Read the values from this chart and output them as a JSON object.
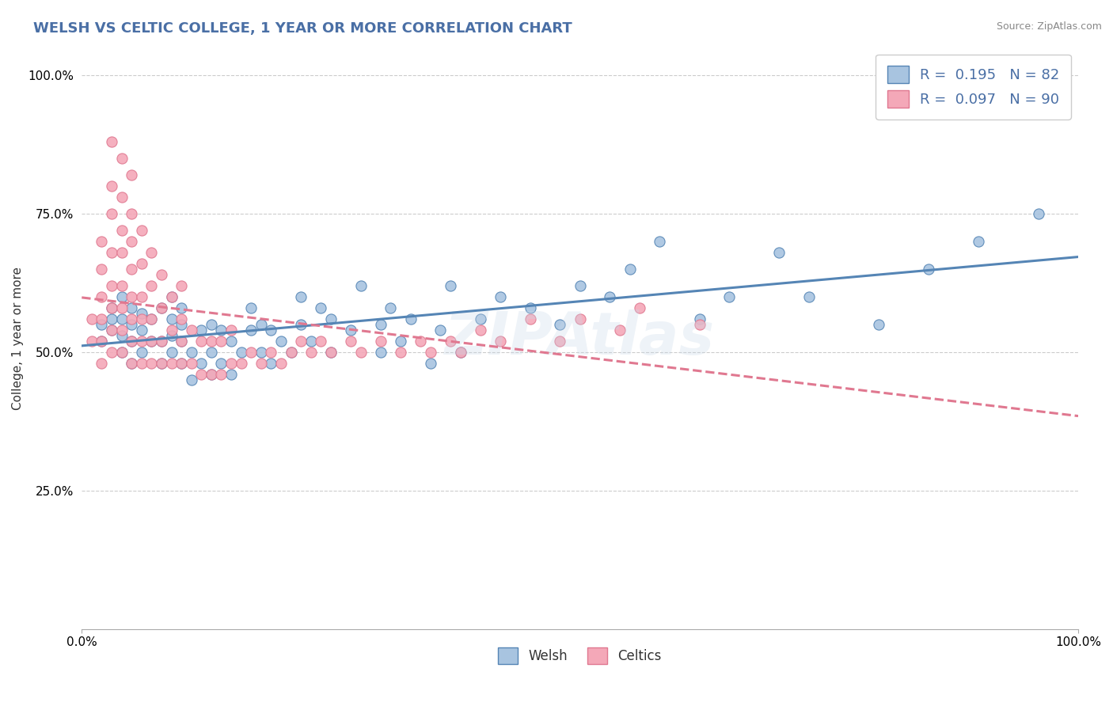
{
  "title": "WELSH VS CELTIC COLLEGE, 1 YEAR OR MORE CORRELATION CHART",
  "source": "Source: ZipAtlas.com",
  "xlabel": "",
  "ylabel": "College, 1 year or more",
  "xlim": [
    0.0,
    1.0
  ],
  "ylim": [
    0.0,
    1.05
  ],
  "xtick_labels": [
    "0.0%",
    "100.0%"
  ],
  "ytick_labels": [
    "25.0%",
    "50.0%",
    "75.0%",
    "100.0%"
  ],
  "legend_labels": [
    "Welsh",
    "Celtics"
  ],
  "welsh_R": 0.195,
  "welsh_N": 82,
  "celtics_R": 0.097,
  "celtics_N": 90,
  "welsh_color": "#a8c4e0",
  "celtics_color": "#f4a8b8",
  "welsh_line_color": "#5585b5",
  "celtics_line_color": "#e07890",
  "title_color": "#4a6fa5",
  "title_fontsize": 14,
  "watermark": "ZIPAtlas",
  "welsh_x": [
    0.02,
    0.02,
    0.03,
    0.03,
    0.03,
    0.04,
    0.04,
    0.04,
    0.04,
    0.05,
    0.05,
    0.05,
    0.05,
    0.06,
    0.06,
    0.06,
    0.07,
    0.07,
    0.08,
    0.08,
    0.08,
    0.09,
    0.09,
    0.09,
    0.09,
    0.1,
    0.1,
    0.1,
    0.1,
    0.11,
    0.11,
    0.12,
    0.12,
    0.13,
    0.13,
    0.13,
    0.14,
    0.14,
    0.15,
    0.15,
    0.16,
    0.17,
    0.17,
    0.18,
    0.18,
    0.19,
    0.19,
    0.2,
    0.21,
    0.22,
    0.22,
    0.23,
    0.24,
    0.25,
    0.25,
    0.27,
    0.28,
    0.3,
    0.3,
    0.31,
    0.32,
    0.33,
    0.35,
    0.36,
    0.37,
    0.38,
    0.4,
    0.42,
    0.45,
    0.48,
    0.5,
    0.53,
    0.55,
    0.58,
    0.62,
    0.65,
    0.7,
    0.73,
    0.8,
    0.85,
    0.9,
    0.96
  ],
  "welsh_y": [
    0.52,
    0.55,
    0.54,
    0.56,
    0.58,
    0.5,
    0.53,
    0.56,
    0.6,
    0.48,
    0.52,
    0.55,
    0.58,
    0.5,
    0.54,
    0.57,
    0.52,
    0.56,
    0.48,
    0.52,
    0.58,
    0.5,
    0.53,
    0.56,
    0.6,
    0.48,
    0.52,
    0.55,
    0.58,
    0.45,
    0.5,
    0.48,
    0.54,
    0.46,
    0.5,
    0.55,
    0.48,
    0.54,
    0.46,
    0.52,
    0.5,
    0.54,
    0.58,
    0.5,
    0.55,
    0.48,
    0.54,
    0.52,
    0.5,
    0.55,
    0.6,
    0.52,
    0.58,
    0.5,
    0.56,
    0.54,
    0.62,
    0.5,
    0.55,
    0.58,
    0.52,
    0.56,
    0.48,
    0.54,
    0.62,
    0.5,
    0.56,
    0.6,
    0.58,
    0.55,
    0.62,
    0.6,
    0.65,
    0.7,
    0.56,
    0.6,
    0.68,
    0.6,
    0.55,
    0.65,
    0.7,
    0.75
  ],
  "celtics_x": [
    0.01,
    0.01,
    0.02,
    0.02,
    0.02,
    0.02,
    0.02,
    0.02,
    0.03,
    0.03,
    0.03,
    0.03,
    0.03,
    0.03,
    0.03,
    0.03,
    0.04,
    0.04,
    0.04,
    0.04,
    0.04,
    0.04,
    0.04,
    0.04,
    0.05,
    0.05,
    0.05,
    0.05,
    0.05,
    0.05,
    0.05,
    0.05,
    0.06,
    0.06,
    0.06,
    0.06,
    0.06,
    0.06,
    0.07,
    0.07,
    0.07,
    0.07,
    0.07,
    0.08,
    0.08,
    0.08,
    0.08,
    0.09,
    0.09,
    0.09,
    0.1,
    0.1,
    0.1,
    0.1,
    0.11,
    0.11,
    0.12,
    0.12,
    0.13,
    0.13,
    0.14,
    0.14,
    0.15,
    0.15,
    0.16,
    0.17,
    0.18,
    0.19,
    0.2,
    0.21,
    0.22,
    0.23,
    0.24,
    0.25,
    0.27,
    0.28,
    0.3,
    0.32,
    0.34,
    0.35,
    0.37,
    0.38,
    0.4,
    0.42,
    0.45,
    0.48,
    0.5,
    0.54,
    0.56,
    0.62
  ],
  "celtics_y": [
    0.52,
    0.56,
    0.48,
    0.52,
    0.56,
    0.6,
    0.65,
    0.7,
    0.5,
    0.54,
    0.58,
    0.62,
    0.68,
    0.75,
    0.8,
    0.88,
    0.5,
    0.54,
    0.58,
    0.62,
    0.68,
    0.72,
    0.78,
    0.85,
    0.48,
    0.52,
    0.56,
    0.6,
    0.65,
    0.7,
    0.75,
    0.82,
    0.48,
    0.52,
    0.56,
    0.6,
    0.66,
    0.72,
    0.48,
    0.52,
    0.56,
    0.62,
    0.68,
    0.48,
    0.52,
    0.58,
    0.64,
    0.48,
    0.54,
    0.6,
    0.48,
    0.52,
    0.56,
    0.62,
    0.48,
    0.54,
    0.46,
    0.52,
    0.46,
    0.52,
    0.46,
    0.52,
    0.48,
    0.54,
    0.48,
    0.5,
    0.48,
    0.5,
    0.48,
    0.5,
    0.52,
    0.5,
    0.52,
    0.5,
    0.52,
    0.5,
    0.52,
    0.5,
    0.52,
    0.5,
    0.52,
    0.5,
    0.54,
    0.52,
    0.56,
    0.52,
    0.56,
    0.54,
    0.58,
    0.55
  ]
}
